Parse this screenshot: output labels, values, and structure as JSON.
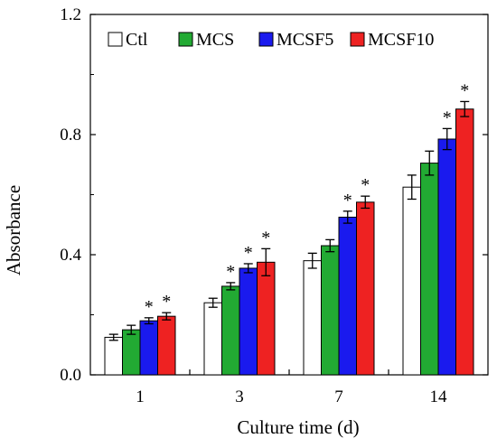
{
  "chart_data": {
    "type": "bar",
    "title": "",
    "xlabel": "Culture time (d)",
    "ylabel": "Absorbance",
    "categories": [
      "1",
      "3",
      "7",
      "14"
    ],
    "ylim": [
      0,
      1.2
    ],
    "yticks": [
      "0.0",
      "0.4",
      "0.8",
      "1.2"
    ],
    "grid": false,
    "legend_position": "top",
    "significance_marker": "*",
    "series": [
      {
        "name": "Ctl",
        "color": "#ffffff",
        "values": [
          0.125,
          0.24,
          0.38,
          0.625
        ],
        "errors": [
          0.01,
          0.015,
          0.025,
          0.04
        ],
        "significant": [
          false,
          false,
          false,
          false
        ]
      },
      {
        "name": "MCS",
        "color": "#22aa33",
        "values": [
          0.15,
          0.295,
          0.43,
          0.705
        ],
        "errors": [
          0.015,
          0.012,
          0.02,
          0.04
        ],
        "significant": [
          false,
          true,
          false,
          false
        ]
      },
      {
        "name": "MCSF5",
        "color": "#1a1aee",
        "values": [
          0.18,
          0.355,
          0.525,
          0.785
        ],
        "errors": [
          0.01,
          0.015,
          0.02,
          0.035
        ],
        "significant": [
          true,
          true,
          true,
          true
        ]
      },
      {
        "name": "MCSF10",
        "color": "#ee2222",
        "values": [
          0.195,
          0.375,
          0.575,
          0.885
        ],
        "errors": [
          0.012,
          0.045,
          0.02,
          0.025
        ],
        "significant": [
          true,
          true,
          true,
          true
        ]
      }
    ]
  }
}
